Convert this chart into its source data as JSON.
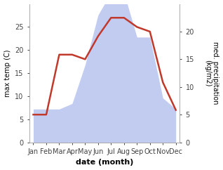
{
  "months": [
    "Jan",
    "Feb",
    "Mar",
    "Apr",
    "May",
    "Jun",
    "Jul",
    "Aug",
    "Sep",
    "Oct",
    "Nov",
    "Dec"
  ],
  "temperature": [
    6,
    6,
    19,
    19,
    18,
    23,
    27,
    27,
    25,
    24,
    13,
    7
  ],
  "precipitation": [
    6,
    6,
    6,
    7,
    14,
    23,
    27,
    27,
    19,
    19,
    8,
    6
  ],
  "temp_color": "#c0392b",
  "precip_color": "#b8c4ef",
  "background_color": "#ffffff",
  "xlabel": "date (month)",
  "ylabel_left": "max temp (C)",
  "ylabel_right": "med. precipitation\n(kg/m2)",
  "ylim_left": [
    0,
    30
  ],
  "ylim_right": [
    0,
    25
  ],
  "yticks_left": [
    0,
    5,
    10,
    15,
    20,
    25
  ],
  "yticks_right": [
    0,
    5,
    10,
    15,
    20
  ],
  "temp_linewidth": 1.8,
  "xlabel_fontsize": 8,
  "ylabel_fontsize": 7,
  "tick_fontsize": 7
}
